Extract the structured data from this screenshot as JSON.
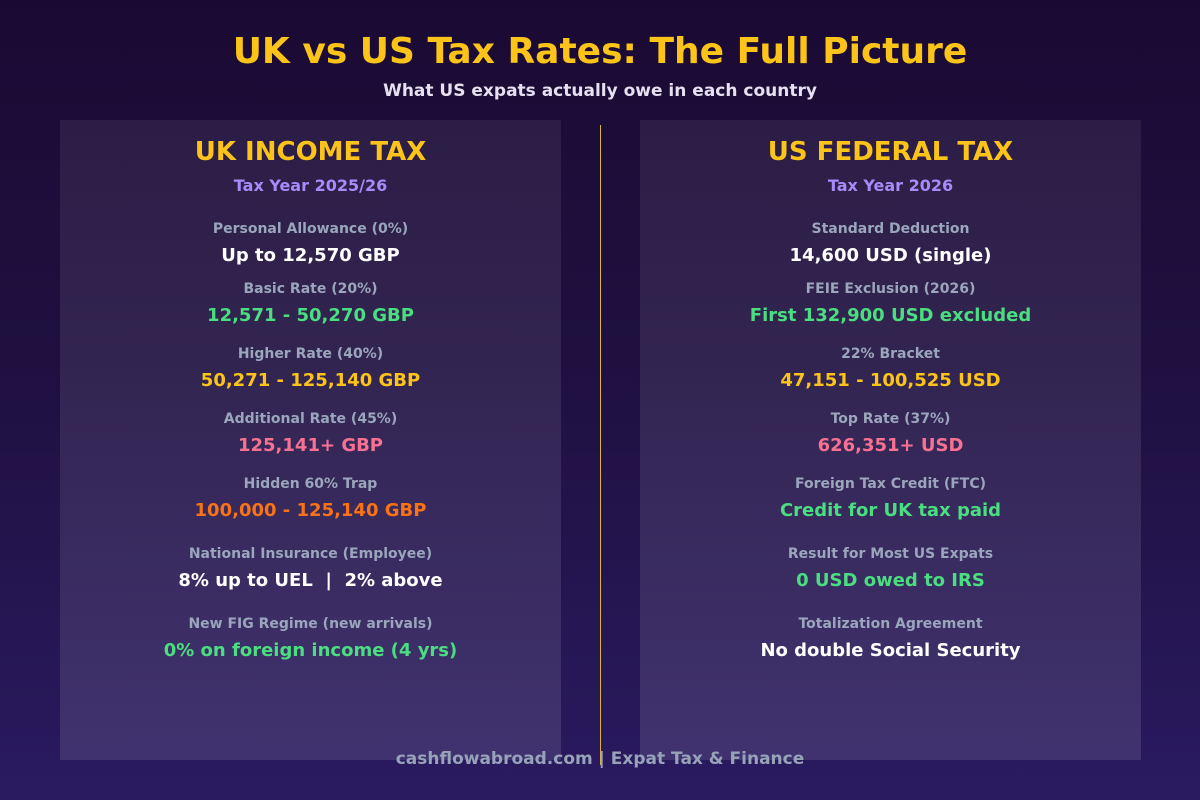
{
  "header": {
    "title": "UK vs US Tax Rates: The Full Picture",
    "subtitle": "What US expats actually owe in each country"
  },
  "uk": {
    "title": "UK INCOME TAX",
    "year": "Tax Year 2025/26",
    "rows": [
      {
        "label": "Personal Allowance (0%)",
        "value": "Up to 12,570 GBP",
        "color": "#ffffff"
      },
      {
        "label": "Basic Rate (20%)",
        "value": "12,571 - 50,270 GBP",
        "color": "#4ade80"
      },
      {
        "label": "Higher Rate (40%)",
        "value": "50,271 - 125,140 GBP",
        "color": "#fcc419"
      },
      {
        "label": "Additional Rate (45%)",
        "value": "125,141+ GBP",
        "color": "#f87193"
      },
      {
        "label": "Hidden 60% Trap",
        "value": "100,000 - 125,140 GBP",
        "color": "#f97316"
      },
      {
        "label": "National Insurance (Employee)",
        "value": "8% up to UEL  |  2% above",
        "color": "#ffffff"
      },
      {
        "label": "New FIG Regime (new arrivals)",
        "value": "0% on foreign income (4 yrs)",
        "color": "#4ade80"
      }
    ]
  },
  "us": {
    "title": "US FEDERAL TAX",
    "year": "Tax Year 2026",
    "rows": [
      {
        "label": "Standard Deduction",
        "value": "14,600 USD (single)",
        "color": "#ffffff"
      },
      {
        "label": "FEIE Exclusion (2026)",
        "value": "First 132,900 USD excluded",
        "color": "#4ade80"
      },
      {
        "label": "22% Bracket",
        "value": "47,151 - 100,525 USD",
        "color": "#fcc419"
      },
      {
        "label": "Top Rate (37%)",
        "value": "626,351+ USD",
        "color": "#f87193"
      },
      {
        "label": "Foreign Tax Credit (FTC)",
        "value": "Credit for UK tax paid",
        "color": "#4ade80"
      },
      {
        "label": "Result for Most US Expats",
        "value": "0 USD owed to IRS",
        "color": "#4ade80"
      },
      {
        "label": "Totalization Agreement",
        "value": "No double Social Security",
        "color": "#ffffff"
      }
    ]
  },
  "footer": {
    "text": "cashflowabroad.com  |  Expat Tax & Finance"
  }
}
